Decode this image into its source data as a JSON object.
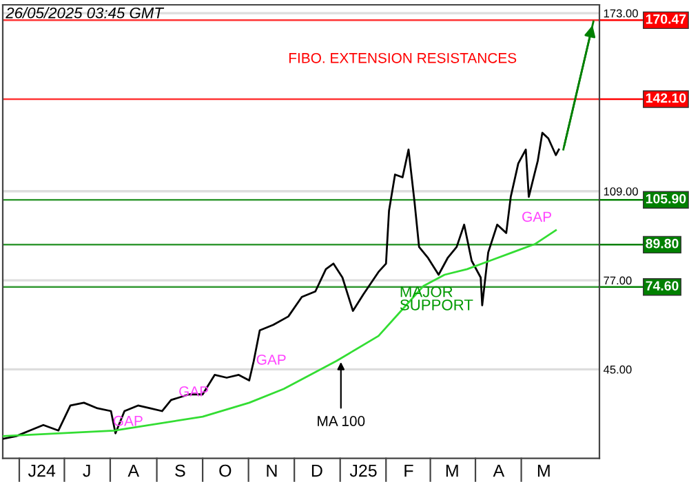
{
  "chart_data": {
    "type": "line",
    "xlim": [
      "2024-05-21",
      "2025-06-22"
    ],
    "xticks": [
      {
        "value": "2024-06-16",
        "label": "J24"
      },
      {
        "value": "2024-07-16",
        "label": "J"
      },
      {
        "value": "2024-08-16",
        "label": "A"
      },
      {
        "value": "2024-09-16",
        "label": "S"
      },
      {
        "value": "2024-10-16",
        "label": "O"
      },
      {
        "value": "2024-11-16",
        "label": "N"
      },
      {
        "value": "2024-12-16",
        "label": "D"
      },
      {
        "value": "2025-01-16",
        "label": "J25"
      },
      {
        "value": "2025-02-15",
        "label": "F"
      },
      {
        "value": "2025-03-16",
        "label": "M"
      },
      {
        "value": "2025-04-16",
        "label": "A"
      },
      {
        "value": "2025-05-16",
        "label": "M"
      }
    ],
    "ylim": [
      13,
      176
    ],
    "yticks": [
      {
        "value": 45,
        "label": "45.00"
      },
      {
        "value": 77,
        "label": "77.00"
      },
      {
        "value": 109,
        "label": "109.00"
      },
      {
        "value": 173,
        "label": "173.00"
      }
    ],
    "grid": "y",
    "series": [
      {
        "type": "line",
        "color": "#000000",
        "x": [
          "2024-05-21",
          "2024-05-30",
          "2024-06-08",
          "2024-06-17",
          "2024-06-27",
          "2024-07-05",
          "2024-07-14",
          "2024-07-23",
          "2024-08-01",
          "2024-08-04",
          "2024-08-10",
          "2024-08-19",
          "2024-08-27",
          "2024-09-04",
          "2024-09-10",
          "2024-09-22",
          "2024-10-01",
          "2024-10-09",
          "2024-10-17",
          "2024-10-25",
          "2024-11-01",
          "2024-11-04",
          "2024-11-08",
          "2024-11-17",
          "2024-11-27",
          "2024-12-06",
          "2024-12-15",
          "2024-12-22",
          "2024-12-27",
          "2025-01-02",
          "2025-01-09",
          "2025-01-16",
          "2025-01-26",
          "2025-01-31",
          "2025-02-02",
          "2025-02-06",
          "2025-02-11",
          "2025-02-15",
          "2025-02-19",
          "2025-02-22",
          "2025-02-28",
          "2025-03-07",
          "2025-03-13",
          "2025-03-19",
          "2025-03-24",
          "2025-03-29",
          "2025-04-04",
          "2025-04-05",
          "2025-04-09",
          "2025-04-15",
          "2025-04-21",
          "2025-04-24",
          "2025-04-29",
          "2025-05-04",
          "2025-05-06",
          "2025-05-12",
          "2025-05-15",
          "2025-05-19",
          "2025-05-24",
          "2025-05-26"
        ],
        "values": [
          20,
          21,
          23,
          25,
          23,
          32,
          33,
          31,
          30,
          22,
          30,
          32,
          31,
          30,
          34,
          36,
          36,
          43,
          42,
          43,
          41,
          48,
          59,
          61,
          64,
          71,
          73,
          81,
          83,
          78,
          66,
          72,
          80,
          83,
          102,
          115,
          114,
          124,
          105,
          89,
          85,
          79,
          85,
          89,
          97,
          84,
          78,
          68,
          87,
          97,
          94,
          107,
          119,
          124,
          107,
          120,
          130,
          128,
          122,
          124
        ]
      },
      {
        "type": "line",
        "color": "#33dd33",
        "x": [
          "2024-05-21",
          "2024-08-03",
          "2024-10-01",
          "2024-11-01",
          "2024-11-24",
          "2024-12-29",
          "2025-01-26",
          "2025-02-10",
          "2025-02-25",
          "2025-03-11",
          "2025-03-26",
          "2025-04-10",
          "2025-04-25",
          "2025-05-10",
          "2025-05-24"
        ],
        "values": [
          21,
          23,
          28,
          33,
          38,
          48,
          57,
          66,
          75,
          79,
          81,
          84,
          87,
          90,
          95
        ]
      },
      {
        "type": "line",
        "color": "#008000",
        "x": [
          "2025-05-29",
          "2025-06-18"
        ],
        "values": [
          124,
          170
        ]
      }
    ],
    "ref_lines": [
      {
        "axis": "y",
        "value": 170.47,
        "label": "170.47",
        "color": "#ff0000"
      },
      {
        "axis": "y",
        "value": 142.1,
        "label": "142.10",
        "color": "#ff0000"
      },
      {
        "axis": "y",
        "value": 105.9,
        "label": "105.90",
        "color": "#008000"
      },
      {
        "axis": "y",
        "value": 89.8,
        "label": "89.80",
        "color": "#008000"
      },
      {
        "axis": "y",
        "value": 74.6,
        "label": "74.60",
        "color": "#008000"
      }
    ],
    "annotations": [
      "26/05/2025 03:45 GMT",
      "FIBO. EXTENSION RESISTANCES",
      "GAP",
      "GAP",
      "GAP",
      "GAP",
      "MAJOR\nSUPPORT",
      {
        "text": "MA 100",
        "x": "2025-01-01",
        "y": 49
      }
    ]
  }
}
